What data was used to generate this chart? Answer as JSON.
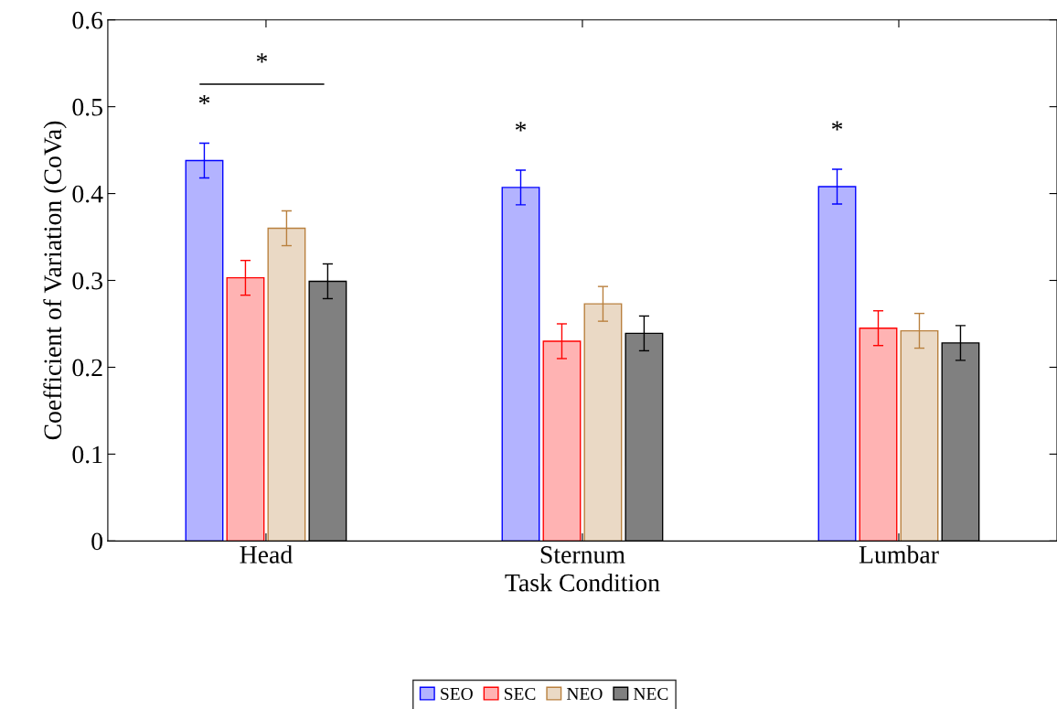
{
  "chart_data": {
    "type": "bar",
    "xlabel": "Task Condition",
    "ylabel": "Coefficient of Variation (CoVa)",
    "categories": [
      "Head",
      "Sternum",
      "Lumbar"
    ],
    "series": [
      {
        "name": "SEO",
        "color": "#b3b3ff",
        "values": [
          0.438,
          0.407,
          0.408
        ],
        "errors": [
          0.02,
          0.02,
          0.02
        ]
      },
      {
        "name": "SEC",
        "color": "#ffb3b3",
        "values": [
          0.303,
          0.23,
          0.245
        ],
        "errors": [
          0.02,
          0.02,
          0.02
        ]
      },
      {
        "name": "NEO",
        "color": "#ead9c5",
        "values": [
          0.36,
          0.273,
          0.242
        ],
        "errors": [
          0.02,
          0.02,
          0.02
        ]
      },
      {
        "name": "NEC",
        "color": "#808080",
        "values": [
          0.299,
          0.239,
          0.228
        ],
        "errors": [
          0.02,
          0.02,
          0.02
        ]
      }
    ],
    "ylim": [
      0,
      0.6
    ],
    "yticks": [
      0,
      0.1,
      0.2,
      0.3,
      0.4,
      0.5,
      0.6
    ],
    "annotations": [
      "*",
      "*",
      "*",
      "*"
    ],
    "grid": false,
    "legend": "bottom"
  }
}
